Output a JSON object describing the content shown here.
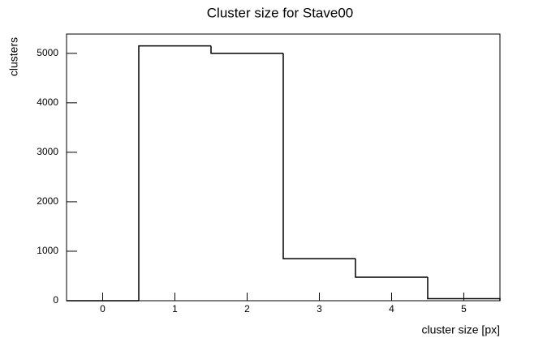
{
  "chart_data": {
    "type": "histogram",
    "title": "Cluster size for Stave00",
    "x_label": "cluster size [px]",
    "y_label": "clusters",
    "bins": [
      -0.5,
      0.5,
      1.5,
      2.5,
      3.5,
      4.5,
      5.5
    ],
    "counts": [
      0,
      5150,
      5000,
      850,
      475,
      40
    ],
    "color": "#000000",
    "xlim": [
      -0.5,
      5.5
    ],
    "xticks": [
      0,
      1,
      2,
      3,
      4,
      5
    ],
    "ylim": [
      0,
      5390
    ],
    "yticks": [
      0,
      1000,
      2000,
      3000,
      4000,
      5000
    ]
  }
}
